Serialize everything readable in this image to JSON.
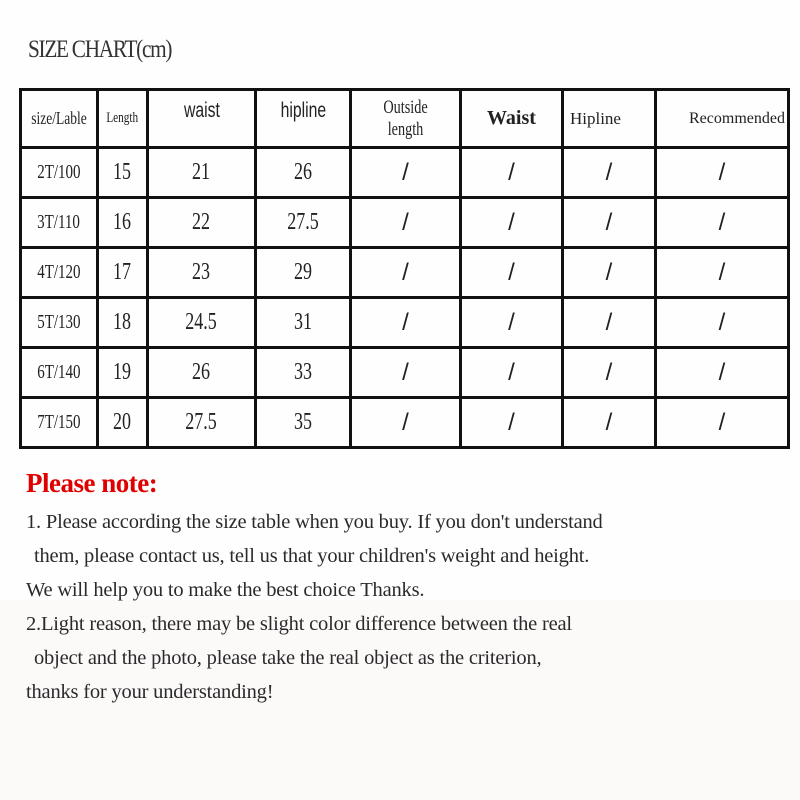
{
  "title": "SIZE CHART(cm)",
  "table": {
    "headers": [
      "size/Lable",
      "Length",
      "waist",
      "hipline",
      "Outside length",
      "Waist",
      "Hipline",
      "Recommended"
    ],
    "rows": [
      [
        "2T/100",
        "15",
        "21",
        "26",
        "/",
        "/",
        "/",
        "/"
      ],
      [
        "3T/110",
        "16",
        "22",
        "27.5",
        "/",
        "/",
        "/",
        "/"
      ],
      [
        "4T/120",
        "17",
        "23",
        "29",
        "/",
        "/",
        "/",
        "/"
      ],
      [
        "5T/130",
        "18",
        "24.5",
        "31",
        "/",
        "/",
        "/",
        "/"
      ],
      [
        "6T/140",
        "19",
        "26",
        "33",
        "/",
        "/",
        "/",
        "/"
      ],
      [
        "7T/150",
        "20",
        "27.5",
        "35",
        "/",
        "/",
        "/",
        "/"
      ]
    ]
  },
  "notes": {
    "heading": "Please note:",
    "heading_color": "#e10000",
    "lines": [
      "1. Please according the size table when you buy. If you don't understand",
      "them, please contact us, tell us that your children's weight and height.",
      "We will help you to make the best choice Thanks.",
      "2.Light reason, there may be slight color difference between the real",
      "object and the photo, please take the real object as the criterion,",
      "thanks for your understanding!"
    ]
  }
}
